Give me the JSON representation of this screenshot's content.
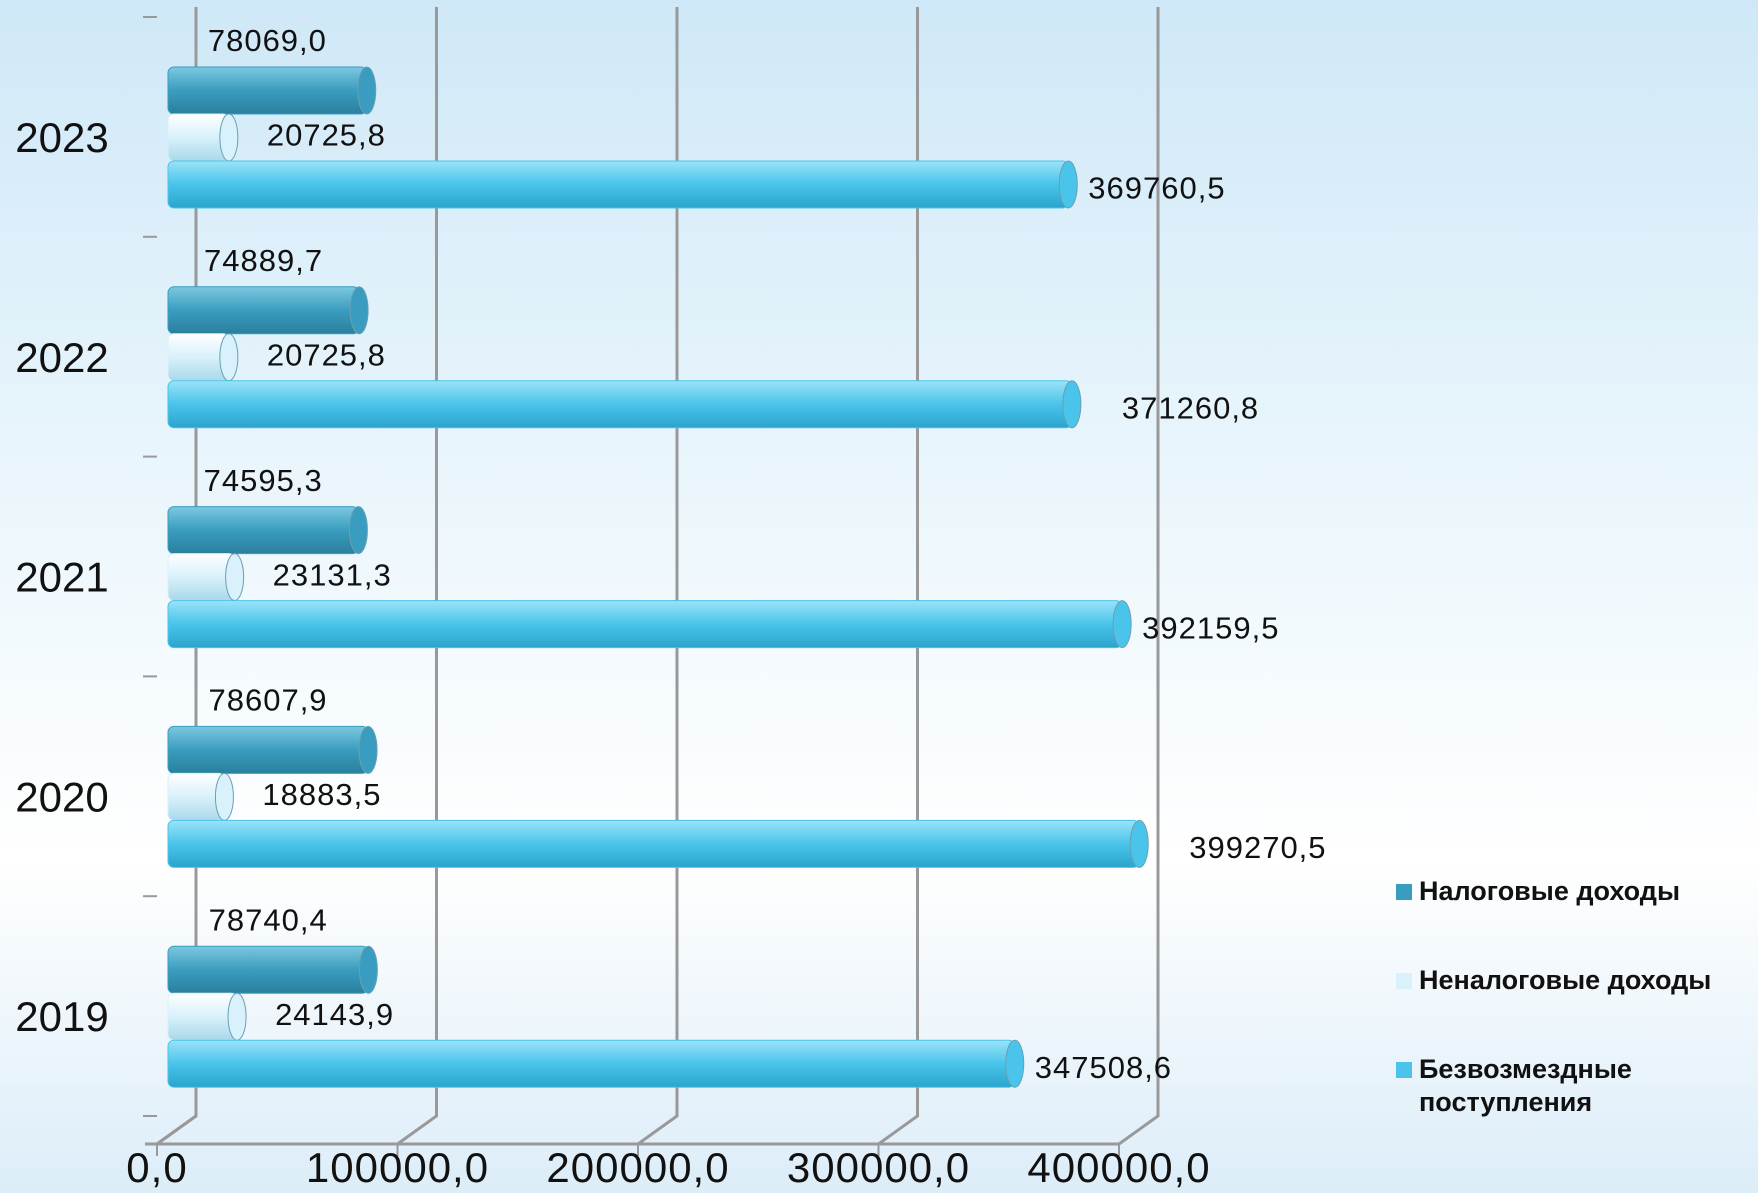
{
  "chart_data": {
    "type": "bar",
    "orientation": "horizontal",
    "categories": [
      "2019",
      "2020",
      "2021",
      "2022",
      "2023"
    ],
    "series": [
      {
        "name": "Налоговые доходы",
        "color": "#3a9dbf",
        "values": [
          78740.4,
          78607.9,
          74595.3,
          74889.7,
          78069.0
        ],
        "value_labels": [
          "78740,4",
          "78607,9",
          "74595,3",
          "74889,7",
          "78069,0"
        ]
      },
      {
        "name": "Неналоговые доходы",
        "color": "#d8f1fb",
        "values": [
          24143.9,
          18883.5,
          23131.3,
          20725.8,
          20725.8
        ],
        "value_labels": [
          "24143,9",
          "18883,5",
          "23131,3",
          "20725,8",
          "20725,8"
        ]
      },
      {
        "name": "Безвозмездные поступления",
        "color": "#4ac4ea",
        "values": [
          347508.6,
          399270.5,
          392159.5,
          371260.8,
          369760.5
        ],
        "value_labels": [
          "347508,6",
          "399270,5",
          "392159,5",
          "371260,8",
          "369760,5"
        ]
      }
    ],
    "xlim": [
      0,
      400000
    ],
    "xticks": [
      {
        "value": 0,
        "label": "0,0"
      },
      {
        "value": 100000,
        "label": "100000,0"
      },
      {
        "value": 200000,
        "label": "200000,0"
      },
      {
        "value": 300000,
        "label": "300000,0"
      },
      {
        "value": 400000,
        "label": "400000,0"
      }
    ],
    "grid": true,
    "legend": "right"
  }
}
